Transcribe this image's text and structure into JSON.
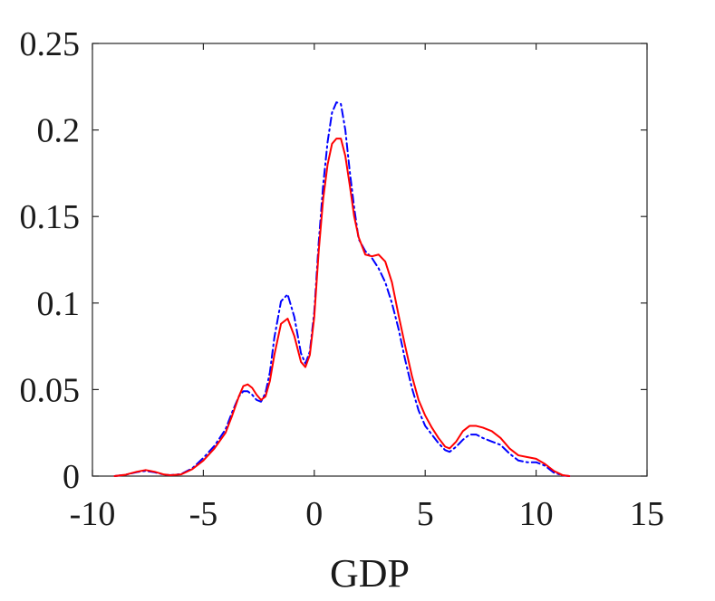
{
  "chart_data": {
    "type": "line",
    "title": "",
    "xlabel": "GDP",
    "ylabel": "",
    "xlim": [
      -10,
      15
    ],
    "ylim": [
      0,
      0.25
    ],
    "xticks": [
      -10,
      -5,
      0,
      5,
      10,
      15
    ],
    "xtick_labels": [
      "-10",
      "-5",
      "0",
      "5",
      "10",
      "15"
    ],
    "yticks": [
      0,
      0.05,
      0.1,
      0.15,
      0.2,
      0.25
    ],
    "ytick_labels": [
      "0",
      "0.05",
      "0.1",
      "0.15",
      "0.2",
      "0.25"
    ],
    "grid": false,
    "legend": "none",
    "series": [
      {
        "color": "#ff0000",
        "style": "solid",
        "x": [
          -9.0,
          -8.5,
          -8.0,
          -7.6,
          -7.2,
          -6.8,
          -6.5,
          -6.0,
          -5.5,
          -5.0,
          -4.5,
          -4.0,
          -3.7,
          -3.4,
          -3.2,
          -3.0,
          -2.8,
          -2.6,
          -2.4,
          -2.2,
          -2.0,
          -1.8,
          -1.5,
          -1.2,
          -0.9,
          -0.6,
          -0.4,
          -0.2,
          0.0,
          0.2,
          0.4,
          0.6,
          0.8,
          1.0,
          1.2,
          1.4,
          1.6,
          1.8,
          2.0,
          2.3,
          2.6,
          2.9,
          3.2,
          3.5,
          3.8,
          4.1,
          4.4,
          4.7,
          5.0,
          5.3,
          5.6,
          5.9,
          6.1,
          6.4,
          6.7,
          7.0,
          7.3,
          7.6,
          8.0,
          8.4,
          8.8,
          9.2,
          9.6,
          10.0,
          10.4,
          10.8,
          11.2,
          11.5
        ],
        "y": [
          0.0,
          0.0008,
          0.0025,
          0.0035,
          0.0025,
          0.001,
          0.0005,
          0.001,
          0.004,
          0.009,
          0.016,
          0.025,
          0.035,
          0.046,
          0.052,
          0.053,
          0.051,
          0.047,
          0.044,
          0.046,
          0.055,
          0.07,
          0.088,
          0.091,
          0.081,
          0.066,
          0.063,
          0.07,
          0.092,
          0.13,
          0.16,
          0.18,
          0.192,
          0.195,
          0.195,
          0.185,
          0.168,
          0.15,
          0.138,
          0.128,
          0.127,
          0.128,
          0.124,
          0.112,
          0.093,
          0.075,
          0.058,
          0.044,
          0.035,
          0.028,
          0.022,
          0.017,
          0.016,
          0.02,
          0.026,
          0.029,
          0.029,
          0.028,
          0.026,
          0.022,
          0.016,
          0.012,
          0.011,
          0.01,
          0.007,
          0.003,
          0.0005,
          0.0
        ]
      },
      {
        "color": "#0000ff",
        "style": "dash-dot",
        "x": [
          -9.0,
          -8.5,
          -8.0,
          -7.6,
          -7.2,
          -6.8,
          -6.5,
          -6.0,
          -5.5,
          -5.0,
          -4.5,
          -4.0,
          -3.7,
          -3.4,
          -3.2,
          -3.0,
          -2.8,
          -2.6,
          -2.4,
          -2.2,
          -2.0,
          -1.8,
          -1.5,
          -1.2,
          -0.9,
          -0.6,
          -0.4,
          -0.2,
          0.0,
          0.2,
          0.4,
          0.6,
          0.8,
          1.0,
          1.2,
          1.4,
          1.6,
          1.8,
          2.0,
          2.3,
          2.6,
          2.9,
          3.2,
          3.5,
          3.8,
          4.1,
          4.4,
          4.7,
          5.0,
          5.3,
          5.6,
          5.9,
          6.1,
          6.4,
          6.7,
          7.0,
          7.3,
          7.6,
          8.0,
          8.4,
          8.8,
          9.2,
          9.6,
          10.0,
          10.4,
          10.8,
          11.2,
          11.5
        ],
        "y": [
          0.0,
          0.0008,
          0.0023,
          0.003,
          0.0022,
          0.0009,
          0.0005,
          0.0012,
          0.0045,
          0.0105,
          0.0175,
          0.027,
          0.037,
          0.046,
          0.049,
          0.049,
          0.047,
          0.044,
          0.043,
          0.048,
          0.06,
          0.08,
          0.101,
          0.105,
          0.092,
          0.071,
          0.065,
          0.072,
          0.095,
          0.135,
          0.168,
          0.193,
          0.21,
          0.216,
          0.215,
          0.2,
          0.176,
          0.155,
          0.137,
          0.13,
          0.126,
          0.12,
          0.112,
          0.1,
          0.085,
          0.067,
          0.051,
          0.038,
          0.029,
          0.024,
          0.019,
          0.015,
          0.014,
          0.017,
          0.021,
          0.024,
          0.024,
          0.022,
          0.02,
          0.018,
          0.013,
          0.009,
          0.008,
          0.008,
          0.006,
          0.002,
          0.0004,
          0.0
        ]
      }
    ]
  }
}
